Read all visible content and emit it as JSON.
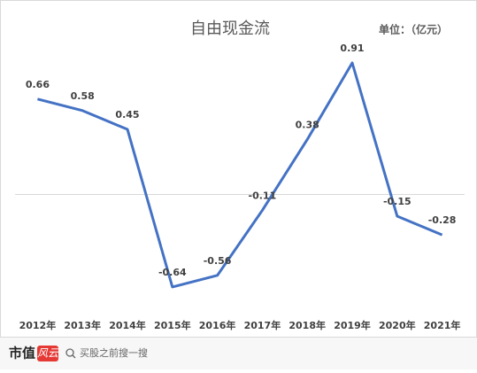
{
  "chart_data": {
    "type": "line",
    "title": "自由现金流",
    "subtitle": "单位：（亿元）",
    "categories": [
      "2012年",
      "2013年",
      "2014年",
      "2015年",
      "2016年",
      "2017年",
      "2018年",
      "2019年",
      "2020年",
      "2021年"
    ],
    "values": [
      0.66,
      0.58,
      0.45,
      -0.64,
      -0.56,
      -0.11,
      0.38,
      0.91,
      -0.15,
      -0.28
    ],
    "color": "#4472c4",
    "ylim": [
      -0.8,
      1.1
    ]
  },
  "footer": {
    "brand": "市值",
    "brand_tag": "风云",
    "search": "买股之前搜一搜"
  }
}
